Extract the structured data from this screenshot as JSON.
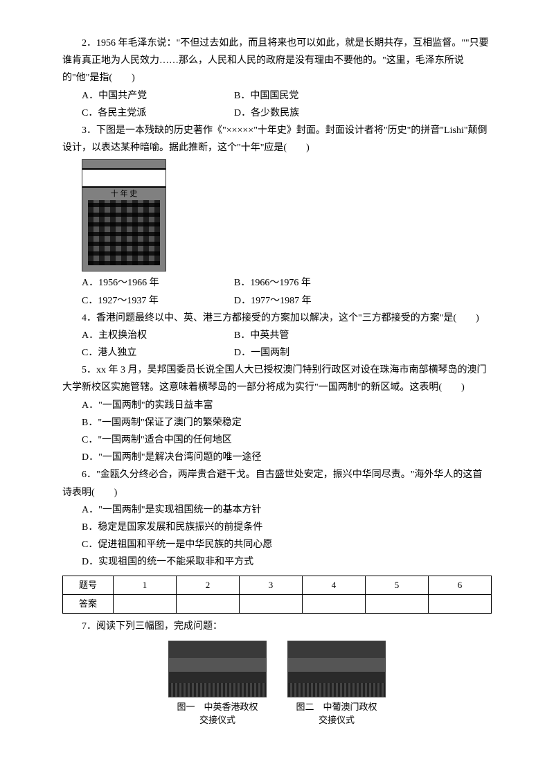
{
  "q2": {
    "text": "2．1956 年毛泽东说：\"不但过去如此，而且将来也可以如此，就是长期共存，互相监督。\"\"只要谁肯真正地为人民效力……那么，人民和人民的政府是没有理由不要他的。\"这里，毛泽东所说的\"他\"是指(　　)",
    "A": "A．中国共产党",
    "B": "B．中国国民党",
    "C": "C．各民主党派",
    "D": "D．各少数民族"
  },
  "q3": {
    "text": "3．下图是一本残缺的历史著作《\"×××××\"十年史》封面。封面设计者将\"历史\"的拼音\"Lishi\"颠倒设计，以表达某种暗喻。据此推断，这个\"十年\"应是(　　)",
    "book_label": "十 年 史",
    "A": "A．1956～1966 年",
    "B": "B．1966～1976 年",
    "C": "C．1927～1937 年",
    "D": "D．1977～1987 年"
  },
  "q4": {
    "text": "4．香港问题最终以中、英、港三方都接受的方案加以解决，这个\"三方都接受的方案\"是(　　)",
    "A": "A．主权换治权",
    "B": "B．中英共管",
    "C": "C．港人独立",
    "D": "D．一国两制"
  },
  "q5": {
    "text": "5．xx 年 3 月，吴邦国委员长说全国人大已授权澳门特别行政区对设在珠海市南部横琴岛的澳门大学新校区实施管辖。这意味着横琴岛的一部分将成为实行\"一国两制\"的新区域。这表明(　　)",
    "A": "A．\"一国两制\"的实践日益丰富",
    "B": "B．\"一国两制\"保证了澳门的繁荣稳定",
    "C": "C．\"一国两制\"适合中国的任何地区",
    "D": "D．\"一国两制\"是解决台湾问题的唯一途径"
  },
  "q6": {
    "text": "6．\"金瓯久分终必合，两岸贵合避干戈。自古盛世处安定，振兴中华同尽责。\"海外华人的这首诗表明(　　)",
    "A": "A．\"一国两制\"是实现祖国统一的基本方针",
    "B": "B．稳定是国家发展和民族振兴的前提条件",
    "C": "C．促进祖国和平统一是中华民族的共同心愿",
    "D": "D．实现祖国的统一不能采取非和平方式"
  },
  "table": {
    "header": "题号",
    "answer_label": "答案",
    "cols": [
      "1",
      "2",
      "3",
      "4",
      "5",
      "6"
    ]
  },
  "q7": {
    "text": "7．阅读下列三幅图，完成问题：",
    "cap1_line1": "图一　中英香港政权",
    "cap1_line2": "交接仪式",
    "cap2_line1": "图二　中葡澳门政权",
    "cap2_line2": "交接仪式"
  }
}
